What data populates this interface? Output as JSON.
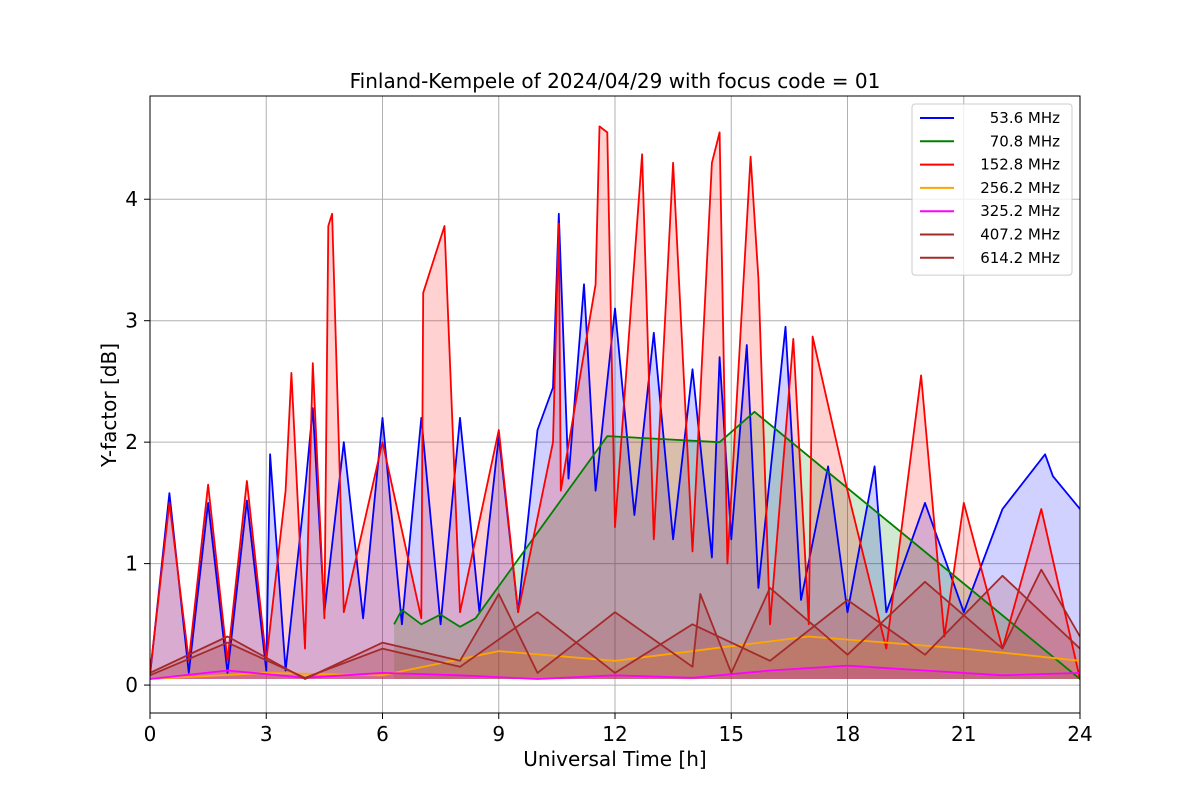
{
  "chart_data": {
    "type": "line",
    "title": "Finland-Kempele of 2024/04/29 with focus code = 01",
    "xlabel": "Universal Time [h]",
    "ylabel": "Y-factor [dB]",
    "xlim": [
      0,
      24
    ],
    "ylim": [
      -0.23,
      4.85
    ],
    "xticks": [
      0,
      3,
      6,
      9,
      12,
      15,
      18,
      21,
      24
    ],
    "xtick_labels": [
      "0",
      "3",
      "6",
      "9",
      "12",
      "15",
      "18",
      "21",
      "24"
    ],
    "yticks": [
      0,
      1,
      2,
      3,
      4
    ],
    "ytick_labels": [
      "0",
      "1",
      "2",
      "3",
      "4"
    ],
    "grid": true,
    "legend_position": "top-right",
    "series": [
      {
        "name": "53.6 MHz",
        "color": "#0000ff",
        "segments": [
          [
            [
              0,
              0.08
            ],
            [
              0.5,
              1.58
            ],
            [
              1,
              0.1
            ],
            [
              1.5,
              1.5
            ],
            [
              2,
              0.1
            ],
            [
              2.5,
              1.52
            ],
            [
              3,
              0.12
            ],
            [
              3.1,
              1.9
            ],
            [
              3.5,
              0.12
            ],
            [
              4,
              1.6
            ],
            [
              4.2,
              2.28
            ],
            [
              4.5,
              0.6
            ],
            [
              5,
              2.0
            ],
            [
              5.5,
              0.55
            ],
            [
              6,
              2.2
            ],
            [
              6.5,
              0.5
            ],
            [
              7,
              2.2
            ],
            [
              7.5,
              0.5
            ],
            [
              8,
              2.2
            ],
            [
              8.5,
              0.6
            ],
            [
              9,
              2.05
            ],
            [
              9.5,
              0.6
            ],
            [
              10,
              2.1
            ],
            [
              10.4,
              2.45
            ],
            [
              10.55,
              3.88
            ],
            [
              10.8,
              1.7
            ],
            [
              11.2,
              3.3
            ],
            [
              11.5,
              1.6
            ],
            [
              12,
              3.1
            ],
            [
              12.5,
              1.4
            ],
            [
              13,
              2.9
            ],
            [
              13.5,
              1.2
            ],
            [
              14,
              2.6
            ],
            [
              14.5,
              1.05
            ],
            [
              14.7,
              2.7
            ],
            [
              15,
              1.2
            ],
            [
              15.4,
              2.8
            ],
            [
              15.7,
              0.8
            ],
            [
              16.4,
              2.95
            ],
            [
              16.8,
              0.7
            ],
            [
              17.5,
              1.8
            ],
            [
              18,
              0.6
            ],
            [
              18.7,
              1.8
            ],
            [
              19,
              0.6
            ],
            [
              20,
              1.5
            ],
            [
              21,
              0.6
            ],
            [
              22,
              1.45
            ],
            [
              23.1,
              1.9
            ],
            [
              23.3,
              1.72
            ],
            [
              24,
              1.45
            ]
          ]
        ]
      },
      {
        "name": "70.8 MHz",
        "color": "#008000",
        "segments": [
          [
            [
              6.3,
              0.5
            ],
            [
              6.5,
              0.62
            ],
            [
              7,
              0.5
            ],
            [
              7.5,
              0.58
            ],
            [
              8,
              0.48
            ],
            [
              8.4,
              0.55
            ],
            [
              11.8,
              2.05
            ],
            [
              14.7,
              2.0
            ],
            [
              15.6,
              2.25
            ],
            [
              24,
              0.05
            ]
          ]
        ]
      },
      {
        "name": "152.8 MHz",
        "color": "#ff0000",
        "segments": [
          [
            [
              0,
              0.1
            ],
            [
              0.5,
              1.5
            ],
            [
              1,
              0.2
            ],
            [
              1.5,
              1.65
            ],
            [
              2,
              0.2
            ],
            [
              2.5,
              1.68
            ],
            [
              3,
              0.2
            ],
            [
              3.5,
              1.6
            ],
            [
              3.65,
              2.57
            ],
            [
              4,
              0.3
            ],
            [
              4.2,
              2.65
            ],
            [
              4.5,
              0.55
            ],
            [
              4.6,
              3.78
            ],
            [
              4.7,
              3.88
            ],
            [
              5,
              0.6
            ],
            [
              6,
              2.0
            ],
            [
              7,
              0.55
            ],
            [
              7.05,
              3.23
            ],
            [
              7.6,
              3.78
            ],
            [
              8,
              0.6
            ],
            [
              9,
              2.1
            ],
            [
              9.5,
              0.6
            ],
            [
              10.4,
              2.0
            ],
            [
              10.55,
              3.8
            ],
            [
              10.6,
              1.6
            ],
            [
              11.5,
              3.3
            ],
            [
              11.6,
              4.6
            ],
            [
              11.8,
              4.55
            ],
            [
              12,
              1.3
            ],
            [
              12.7,
              4.37
            ],
            [
              13,
              1.2
            ],
            [
              13.5,
              4.3
            ],
            [
              14,
              1.1
            ],
            [
              14.5,
              4.3
            ],
            [
              14.7,
              4.55
            ],
            [
              14.9,
              1.0
            ],
            [
              15.5,
              4.35
            ],
            [
              15.7,
              3.35
            ],
            [
              16,
              0.5
            ],
            [
              16.6,
              2.85
            ],
            [
              17,
              0.5
            ],
            [
              17.1,
              2.87
            ],
            [
              18,
              1.6
            ],
            [
              19,
              0.3
            ],
            [
              19.9,
              2.55
            ],
            [
              20.5,
              0.4
            ],
            [
              21,
              1.5
            ],
            [
              22,
              0.3
            ],
            [
              23,
              1.45
            ],
            [
              24,
              0.05
            ]
          ]
        ]
      },
      {
        "name": "256.2 MHz",
        "color": "#ffa500",
        "segments": [
          [
            [
              0,
              0.05
            ],
            [
              3,
              0.1
            ],
            [
              6,
              0.08
            ],
            [
              9,
              0.28
            ],
            [
              12,
              0.2
            ],
            [
              15,
              0.32
            ],
            [
              17,
              0.4
            ],
            [
              19,
              0.35
            ],
            [
              21,
              0.3
            ],
            [
              24,
              0.2
            ]
          ]
        ]
      },
      {
        "name": "325.2 MHz",
        "color": "#ff00ff",
        "segments": [
          [
            [
              0,
              0.05
            ],
            [
              2,
              0.12
            ],
            [
              4,
              0.06
            ],
            [
              6,
              0.1
            ],
            [
              8,
              0.08
            ],
            [
              10,
              0.05
            ],
            [
              12,
              0.08
            ],
            [
              14,
              0.06
            ],
            [
              16,
              0.12
            ],
            [
              18,
              0.16
            ],
            [
              20,
              0.12
            ],
            [
              22,
              0.08
            ],
            [
              24,
              0.1
            ]
          ]
        ]
      },
      {
        "name": "407.2 MHz",
        "color": "#a52a2a",
        "segments": [
          [
            [
              0,
              0.1
            ],
            [
              2,
              0.4
            ],
            [
              4,
              0.05
            ],
            [
              6,
              0.35
            ],
            [
              8,
              0.2
            ],
            [
              9,
              0.75
            ],
            [
              10,
              0.1
            ],
            [
              12,
              0.6
            ],
            [
              14,
              0.15
            ],
            [
              14.2,
              0.75
            ],
            [
              15,
              0.1
            ],
            [
              16,
              0.8
            ],
            [
              18,
              0.25
            ],
            [
              20,
              0.85
            ],
            [
              22,
              0.3
            ],
            [
              23,
              0.95
            ],
            [
              24,
              0.4
            ]
          ]
        ]
      },
      {
        "name": "614.2 MHz",
        "color": "#a52a2a",
        "segments": [
          [
            [
              0,
              0.08
            ],
            [
              2,
              0.35
            ],
            [
              4,
              0.06
            ],
            [
              6,
              0.3
            ],
            [
              8,
              0.15
            ],
            [
              10,
              0.6
            ],
            [
              12,
              0.1
            ],
            [
              14,
              0.5
            ],
            [
              16,
              0.2
            ],
            [
              18,
              0.7
            ],
            [
              20,
              0.25
            ],
            [
              22,
              0.9
            ],
            [
              24,
              0.3
            ]
          ]
        ]
      }
    ]
  }
}
